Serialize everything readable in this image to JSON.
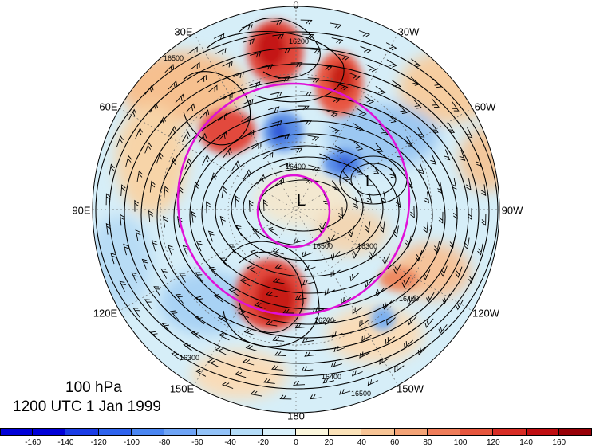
{
  "title": {
    "level": "100 hPa",
    "time": "1200 UTC 1 Jan 1999"
  },
  "lon_labels": [
    "0",
    "30W",
    "60W",
    "90W",
    "120W",
    "150W",
    "180",
    "150E",
    "120E",
    "90E",
    "60E",
    "30E"
  ],
  "low_label": "L",
  "contour_labels": [
    "16200",
    "16300",
    "16400",
    "16500"
  ],
  "colorbar": {
    "ticks": [
      "-160",
      "-140",
      "-120",
      "-100",
      "-80",
      "-60",
      "-40",
      "-20",
      "0",
      "20",
      "40",
      "60",
      "80",
      "100",
      "120",
      "140",
      "160"
    ],
    "colors": [
      "#0000d8",
      "#1a3ce6",
      "#2e63ee",
      "#4a86f2",
      "#6ea4f6",
      "#92c2f8",
      "#b4dcf8",
      "#d8f0fa",
      "#fbf6dc",
      "#fbe2b8",
      "#f7c495",
      "#f3a376",
      "#ef7d5a",
      "#e6563e",
      "#d82d26",
      "#c00e12",
      "#980008"
    ]
  },
  "colors": {
    "circle": "#e010d8",
    "contour": "#000000"
  }
}
